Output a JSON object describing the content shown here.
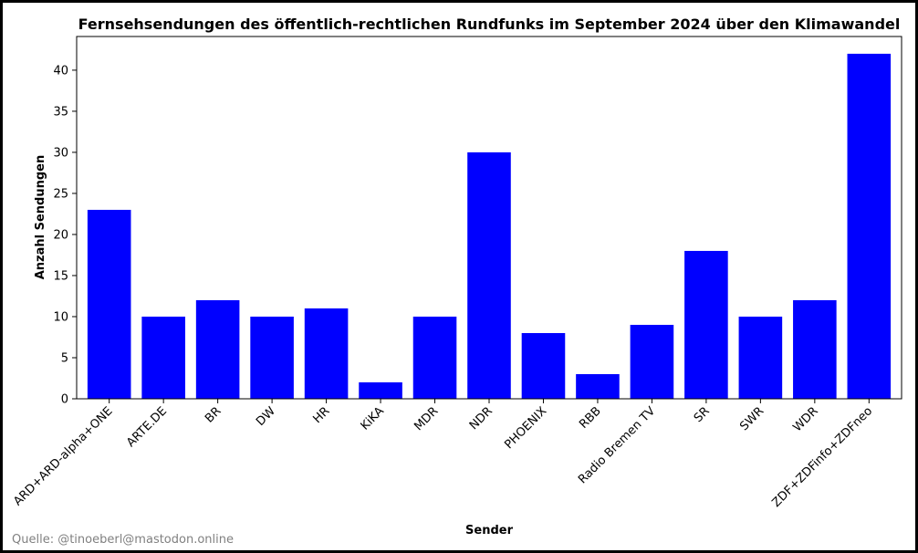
{
  "chart_data": {
    "type": "bar",
    "title": "Fernsehsendungen des öffentlich-rechtlichen Rundfunks im September 2024 über den Klimawandel",
    "xlabel": "Sender",
    "ylabel": "Anzahl Sendungen",
    "categories": [
      "ARD+ARD-alpha+ONE",
      "ARTE.DE",
      "BR",
      "DW",
      "HR",
      "KiKA",
      "MDR",
      "NDR",
      "PHOENIX",
      "RBB",
      "Radio Bremen TV",
      "SR",
      "SWR",
      "WDR",
      "ZDF+ZDFinfo+ZDFneo"
    ],
    "values": [
      23,
      10,
      12,
      10,
      11,
      2,
      10,
      30,
      8,
      3,
      9,
      18,
      10,
      12,
      42
    ],
    "ylim": [
      0,
      44.1
    ],
    "yticks": [
      0,
      5,
      10,
      15,
      20,
      25,
      30,
      35,
      40
    ],
    "bar_color": "#0000ff",
    "grid": false,
    "legend": "none"
  },
  "source_note": "Quelle: @tinoeberl@mastodon.online"
}
